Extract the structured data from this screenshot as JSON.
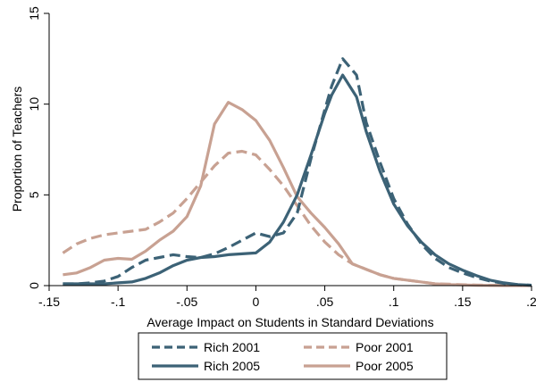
{
  "chart_data": {
    "type": "line",
    "title": "",
    "xlabel": "Average Impact on Students in Standard Deviations",
    "ylabel": "Proportion of Teachers",
    "xlim": [
      -0.15,
      0.2
    ],
    "ylim": [
      0,
      15
    ],
    "x_ticks": [
      -0.15,
      -0.1,
      -0.05,
      0,
      0.05,
      0.1,
      0.15,
      0.2
    ],
    "x_tick_labels": [
      "-.15",
      "-.1",
      "-.05",
      "0",
      ".05",
      ".1",
      ".15",
      ".2"
    ],
    "y_ticks": [
      0,
      5,
      10,
      15
    ],
    "y_tick_labels": [
      "0",
      "5",
      "10",
      "15"
    ],
    "grid": false,
    "legend_position": "bottom",
    "colors": {
      "rich": "#3c6276",
      "poor": "#c8a192"
    },
    "series": [
      {
        "name": "Rich 2001",
        "style": "dashed",
        "color": "#3c6276",
        "x": [
          -0.14,
          -0.13,
          -0.12,
          -0.11,
          -0.1,
          -0.09,
          -0.08,
          -0.07,
          -0.06,
          -0.05,
          -0.04,
          -0.03,
          -0.02,
          -0.01,
          0.0,
          0.01,
          0.02,
          0.03,
          0.04,
          0.05,
          0.055,
          0.063,
          0.073,
          0.08,
          0.09,
          0.1,
          0.11,
          0.12,
          0.13,
          0.14,
          0.15,
          0.16,
          0.17,
          0.18,
          0.19,
          0.2
        ],
        "values": [
          0.1,
          0.1,
          0.15,
          0.25,
          0.5,
          1.0,
          1.4,
          1.55,
          1.7,
          1.6,
          1.55,
          1.75,
          2.1,
          2.5,
          2.9,
          2.7,
          2.9,
          4.0,
          7.0,
          9.7,
          11.0,
          12.5,
          11.6,
          9.0,
          6.8,
          4.8,
          3.4,
          2.3,
          1.5,
          1.0,
          0.7,
          0.45,
          0.25,
          0.12,
          0.05,
          0.02
        ]
      },
      {
        "name": "Rich 2005",
        "style": "solid",
        "color": "#3c6276",
        "x": [
          -0.14,
          -0.13,
          -0.12,
          -0.11,
          -0.1,
          -0.09,
          -0.08,
          -0.07,
          -0.06,
          -0.05,
          -0.04,
          -0.03,
          -0.02,
          -0.01,
          0.0,
          0.01,
          0.02,
          0.03,
          0.04,
          0.05,
          0.055,
          0.063,
          0.073,
          0.08,
          0.09,
          0.1,
          0.11,
          0.12,
          0.13,
          0.14,
          0.15,
          0.16,
          0.17,
          0.18,
          0.19,
          0.2
        ],
        "values": [
          0.1,
          0.1,
          0.1,
          0.1,
          0.15,
          0.2,
          0.4,
          0.7,
          1.1,
          1.4,
          1.55,
          1.6,
          1.7,
          1.75,
          1.8,
          2.4,
          3.5,
          5.0,
          7.2,
          9.5,
          10.5,
          11.6,
          10.4,
          8.5,
          6.3,
          4.5,
          3.3,
          2.4,
          1.7,
          1.2,
          0.85,
          0.55,
          0.3,
          0.15,
          0.06,
          0.02
        ]
      },
      {
        "name": "Poor 2001",
        "style": "dashed",
        "color": "#c8a192",
        "x": [
          -0.14,
          -0.13,
          -0.12,
          -0.11,
          -0.1,
          -0.09,
          -0.08,
          -0.07,
          -0.06,
          -0.05,
          -0.04,
          -0.03,
          -0.02,
          -0.01,
          0.0,
          0.01,
          0.02,
          0.03,
          0.04,
          0.05,
          0.06,
          0.07,
          0.08,
          0.09,
          0.1,
          0.11,
          0.12,
          0.13,
          0.14,
          0.15,
          0.16,
          0.17,
          0.18,
          0.19,
          0.2
        ],
        "values": [
          1.8,
          2.3,
          2.6,
          2.8,
          2.9,
          3.0,
          3.1,
          3.5,
          4.0,
          4.8,
          5.7,
          6.6,
          7.3,
          7.4,
          7.2,
          6.4,
          5.5,
          4.4,
          3.3,
          2.4,
          1.7,
          1.2,
          0.9,
          0.6,
          0.4,
          0.3,
          0.2,
          0.1,
          0.08,
          0.05,
          0.03,
          0.02,
          0.01,
          0.0,
          0.0
        ]
      },
      {
        "name": "Poor 2005",
        "style": "solid",
        "color": "#c8a192",
        "x": [
          -0.14,
          -0.13,
          -0.12,
          -0.11,
          -0.1,
          -0.09,
          -0.08,
          -0.07,
          -0.06,
          -0.05,
          -0.04,
          -0.03,
          -0.02,
          -0.01,
          0.0,
          0.01,
          0.02,
          0.03,
          0.04,
          0.05,
          0.06,
          0.07,
          0.08,
          0.09,
          0.1,
          0.11,
          0.12,
          0.13,
          0.14,
          0.15,
          0.16,
          0.17,
          0.18,
          0.19,
          0.2
        ],
        "values": [
          0.6,
          0.7,
          1.0,
          1.4,
          1.5,
          1.45,
          1.9,
          2.5,
          3.0,
          3.8,
          5.5,
          8.9,
          10.1,
          9.7,
          9.1,
          8.0,
          6.5,
          4.9,
          4.0,
          3.2,
          2.3,
          1.2,
          0.9,
          0.6,
          0.4,
          0.3,
          0.2,
          0.1,
          0.06,
          0.04,
          0.02,
          0.01,
          0.0,
          0.0,
          0.0
        ]
      }
    ]
  }
}
